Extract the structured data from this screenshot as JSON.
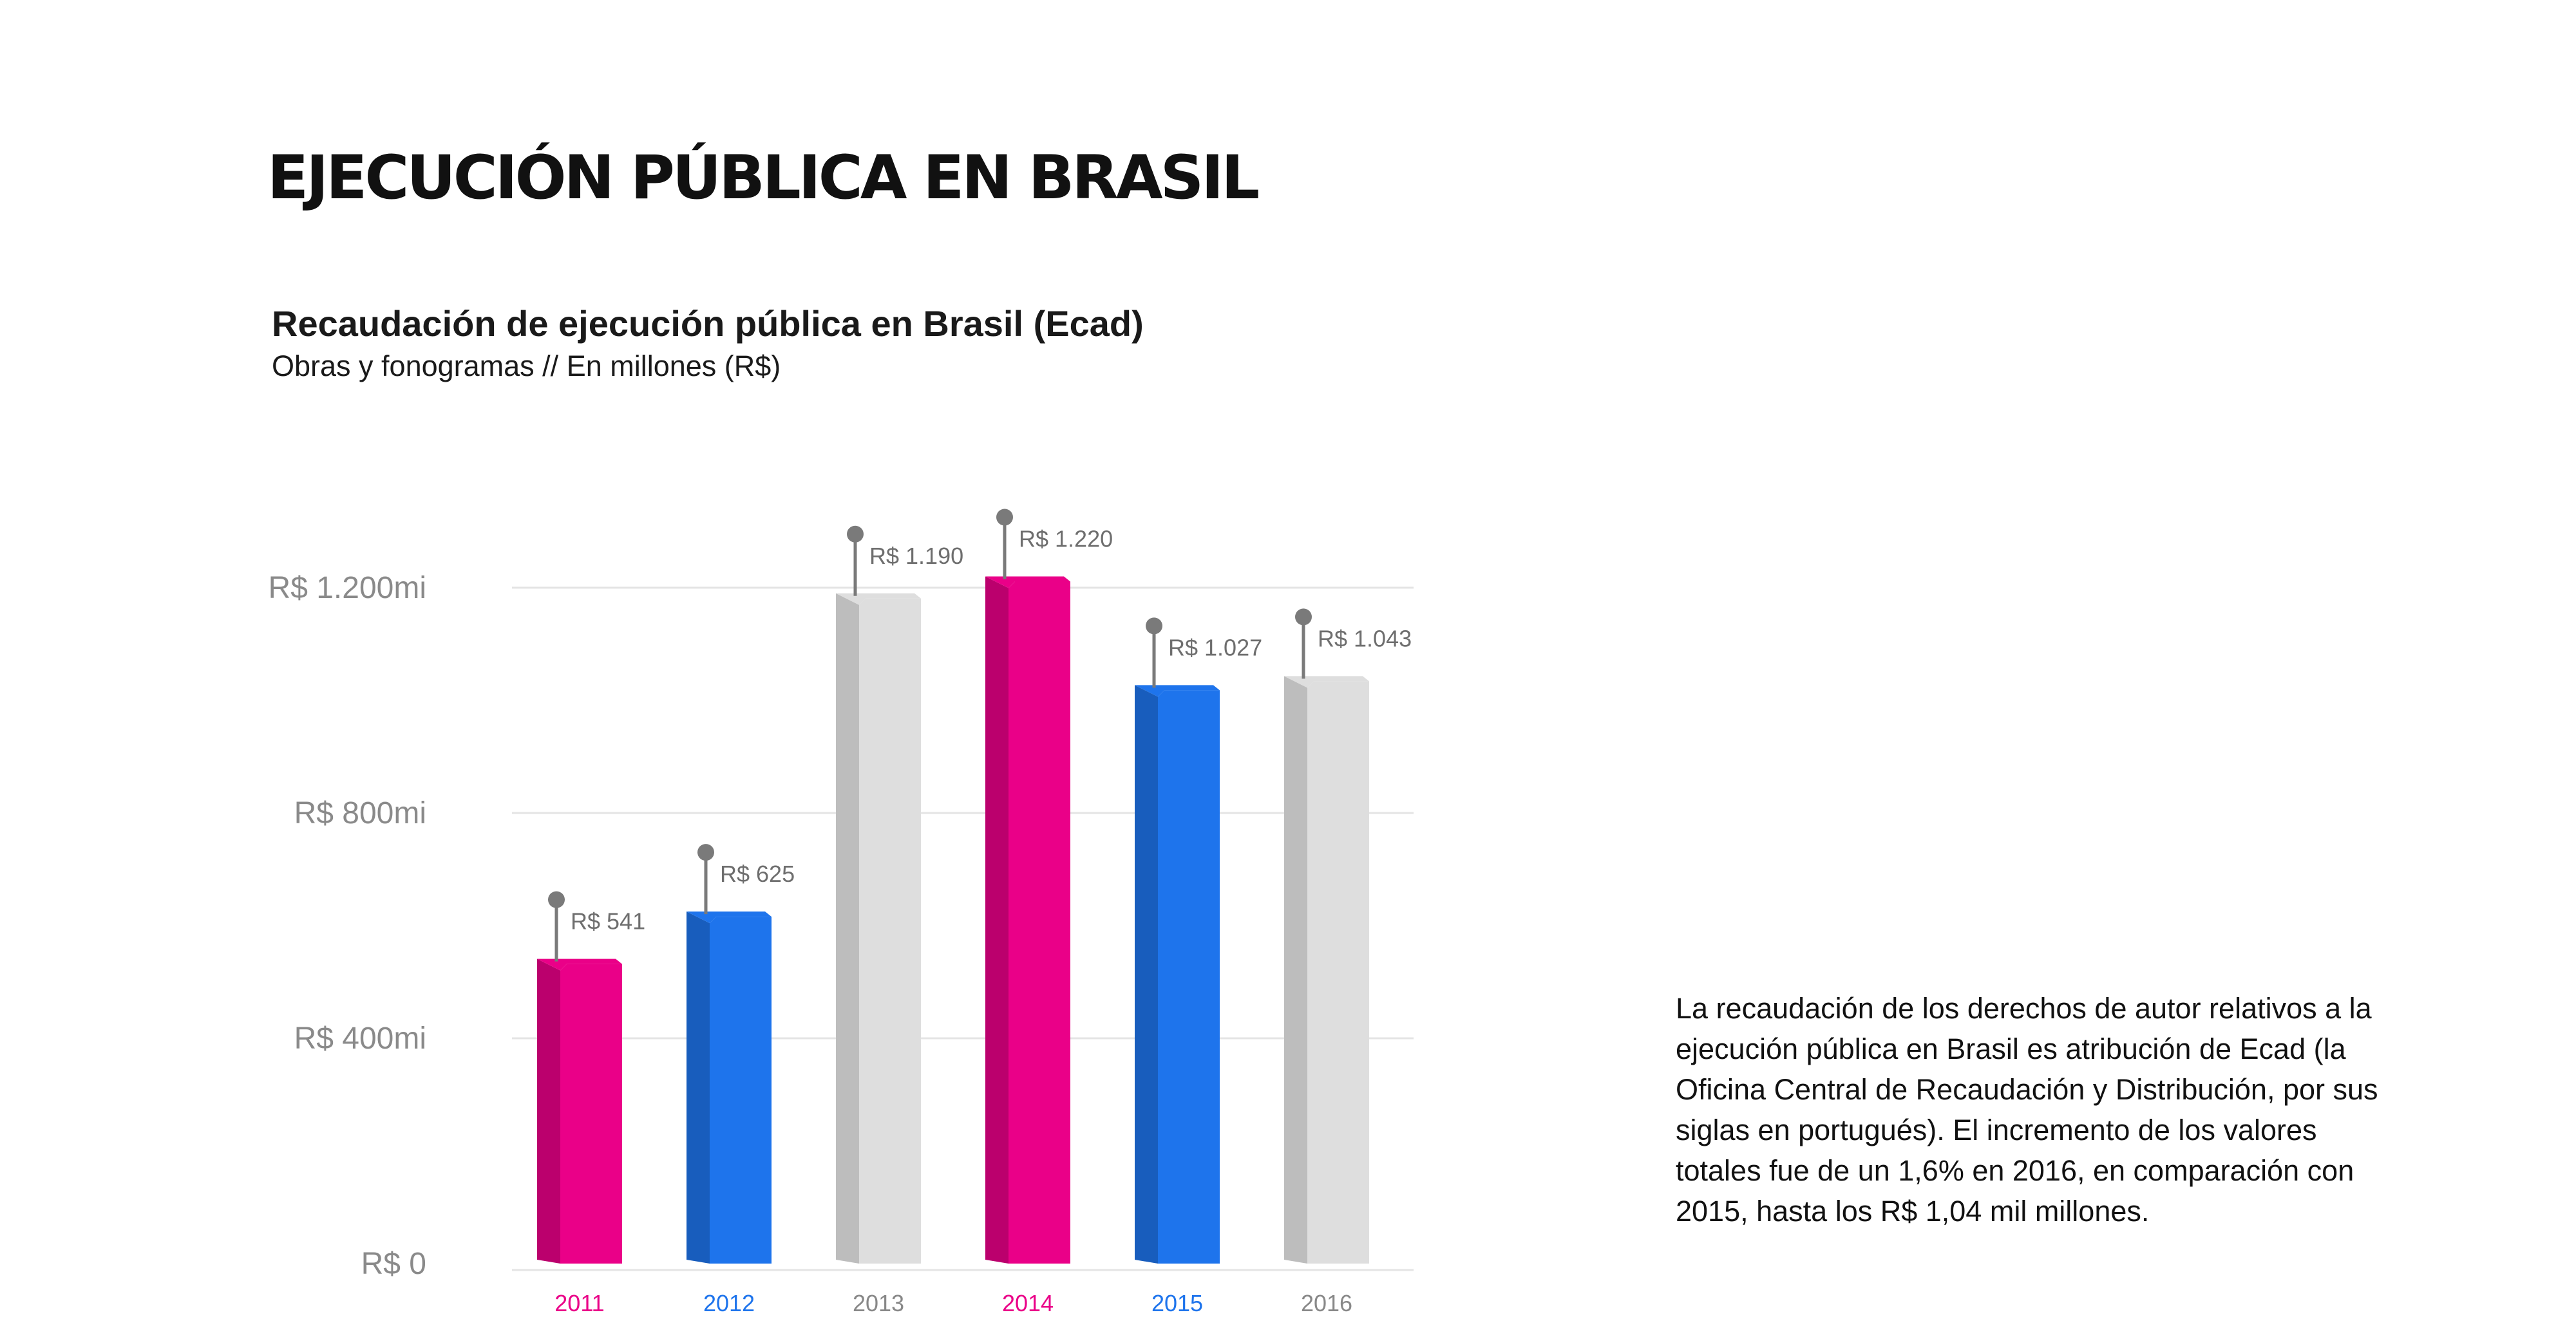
{
  "header": {
    "title": "EJECUCIÓN PÚBLICA EN BRASIL"
  },
  "chart_data": {
    "type": "bar",
    "title": "Recaudación de ejecución pública en Brasil (Ecad)",
    "subtitle": "Obras y fonogramas // En millones (R$)",
    "categories": [
      "2011",
      "2012",
      "2013",
      "2014",
      "2015",
      "2016"
    ],
    "values": [
      541,
      625,
      1190,
      1220,
      1027,
      1043
    ],
    "value_labels": [
      "R$ 541",
      "R$ 625",
      "R$ 1.190",
      "R$ 1.220",
      "R$ 1.027",
      "R$ 1.043"
    ],
    "ylim": [
      0,
      1200
    ],
    "yticks": [
      0,
      400,
      800,
      1200
    ],
    "ytick_labels": [
      "R$ 0",
      "R$ 400mi",
      "R$ 800mi",
      "R$ 1.200mi"
    ],
    "grid": true,
    "bar_colors": [
      "#ea0088",
      "#1e74ec",
      "#dedede",
      "#ea0088",
      "#1e74ec",
      "#dedede"
    ],
    "category_label_colors": [
      "#ea0088",
      "#1e74ec",
      "#888888",
      "#ea0088",
      "#1e74ec",
      "#888888"
    ],
    "colors": {
      "pink": "#ea0088",
      "blue": "#1e74ec",
      "gray": "#dedede",
      "pin": "#7a7a7a",
      "grid": "#e4e4e4",
      "axis_text": "#8a8a8a"
    }
  },
  "description": "La recaudación de los derechos de autor relativos a la ejecución pública en Brasil es atribución de Ecad (la Oficina Central de Recaudación y Distribución, por sus siglas en portugués). El incremento de los valores totales fue de un 1,6% en 2016, en comparación con 2015, hasta los R$ 1,04 mil millones."
}
